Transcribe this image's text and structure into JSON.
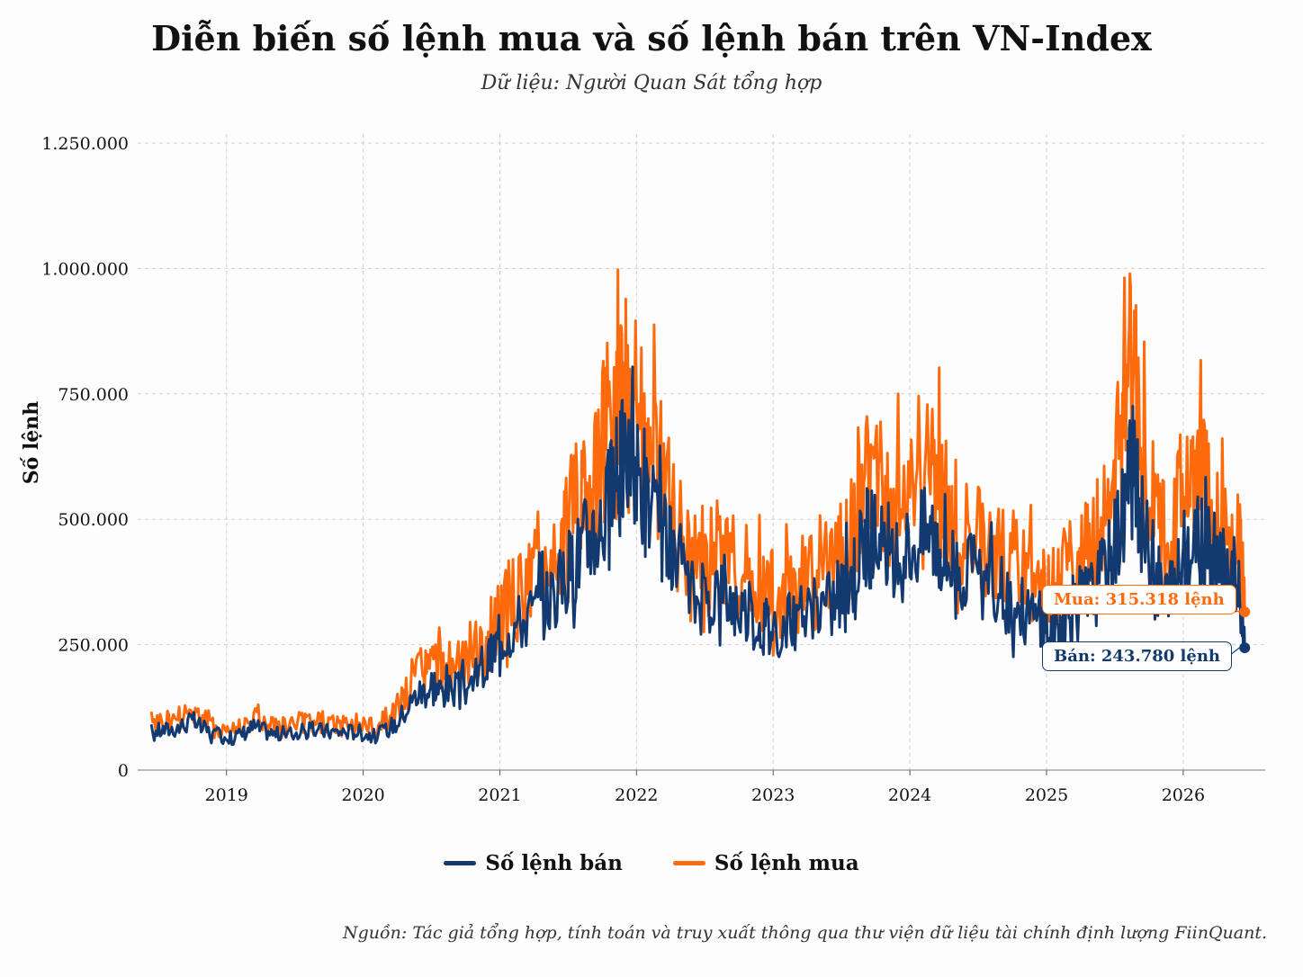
{
  "title": "Diễn biến số lệnh mua và số lệnh bán trên VN-Index",
  "subtitle": "Dữ liệu: Người Quan Sát tổng hợp",
  "source": "Nguồn: Tác giả tổng hợp, tính toán và truy xuất thông qua thư viện dữ liệu tài chính định lượng FiinQuant.",
  "annotations": {
    "buy_label": "Mua: 315.318 lệnh",
    "sell_label": "Bán: 243.780 lệnh"
  },
  "colors": {
    "sell": "#123a70",
    "buy": "#ff6a0d",
    "grid": "#cfcfcf"
  },
  "chart_data": {
    "type": "line",
    "title": "Diễn biến số lệnh mua và số lệnh bán trên VN-Index",
    "subtitle": "Dữ liệu: Người Quan Sát tổng hợp",
    "xlabel": "",
    "ylabel": "Số lệnh",
    "xlim": [
      2018.35,
      2026.6
    ],
    "ylim": [
      0,
      1250000
    ],
    "x_ticks": [
      2019,
      2020,
      2021,
      2022,
      2023,
      2024,
      2025,
      2026
    ],
    "x_tick_labels": [
      "2019",
      "2020",
      "2021",
      "2022",
      "2023",
      "2024",
      "2025",
      "2026"
    ],
    "y_ticks": [
      0,
      250000,
      500000,
      750000,
      1000000,
      1250000
    ],
    "y_tick_labels": [
      "0",
      "250.000",
      "500.000",
      "750.000",
      "1.000.000",
      "1.250.000"
    ],
    "grid": true,
    "legend_position": "bottom",
    "x": [
      2018.45,
      2018.6,
      2018.75,
      2018.9,
      2019.05,
      2019.2,
      2019.35,
      2019.5,
      2019.65,
      2019.8,
      2019.95,
      2020.1,
      2020.25,
      2020.4,
      2020.5,
      2020.6,
      2020.75,
      2020.9,
      2021.0,
      2021.15,
      2021.3,
      2021.45,
      2021.55,
      2021.65,
      2021.75,
      2021.85,
      2021.9,
      2022.0,
      2022.1,
      2022.2,
      2022.3,
      2022.45,
      2022.6,
      2022.75,
      2022.9,
      2023.0,
      2023.15,
      2023.3,
      2023.45,
      2023.55,
      2023.65,
      2023.75,
      2023.85,
      2024.0,
      2024.15,
      2024.25,
      2024.35,
      2024.5,
      2024.65,
      2024.8,
      2024.95,
      2025.05,
      2025.15,
      2025.25,
      2025.35,
      2025.45,
      2025.55,
      2025.62,
      2025.7,
      2025.8,
      2025.9,
      2026.0,
      2026.1,
      2026.2,
      2026.3,
      2026.4,
      2026.45
    ],
    "series": [
      {
        "name": "Số lệnh bán",
        "color": "#123a70",
        "values": [
          75000,
          80000,
          95000,
          70000,
          62000,
          85000,
          70000,
          72000,
          78000,
          74000,
          76000,
          65000,
          95000,
          150000,
          160000,
          155000,
          160000,
          200000,
          260000,
          290000,
          320000,
          360000,
          410000,
          460000,
          480000,
          560000,
          610000,
          580000,
          500000,
          460000,
          380000,
          330000,
          350000,
          320000,
          290000,
          280000,
          290000,
          310000,
          330000,
          360000,
          440000,
          460000,
          380000,
          440000,
          470000,
          420000,
          400000,
          370000,
          350000,
          320000,
          290000,
          270000,
          300000,
          330000,
          350000,
          400000,
          500000,
          600000,
          480000,
          380000,
          330000,
          420000,
          440000,
          420000,
          390000,
          360000,
          243780
        ]
      },
      {
        "name": "Số lệnh mua",
        "color": "#ff6a0d",
        "values": [
          90000,
          95000,
          115000,
          85000,
          75000,
          100000,
          82000,
          85000,
          92000,
          88000,
          90000,
          80000,
          120000,
          190000,
          200000,
          195000,
          200000,
          240000,
          310000,
          340000,
          380000,
          440000,
          500000,
          560000,
          620000,
          720000,
          780000,
          700000,
          620000,
          560000,
          450000,
          400000,
          420000,
          390000,
          360000,
          340000,
          350000,
          370000,
          400000,
          440000,
          560000,
          580000,
          470000,
          560000,
          600000,
          520000,
          490000,
          440000,
          420000,
          390000,
          350000,
          330000,
          380000,
          420000,
          440000,
          500000,
          650000,
          780000,
          620000,
          480000,
          420000,
          540000,
          560000,
          530000,
          490000,
          450000,
          315318
        ]
      }
    ],
    "end_values": {
      "buy": 315318,
      "sell": 243780
    }
  }
}
